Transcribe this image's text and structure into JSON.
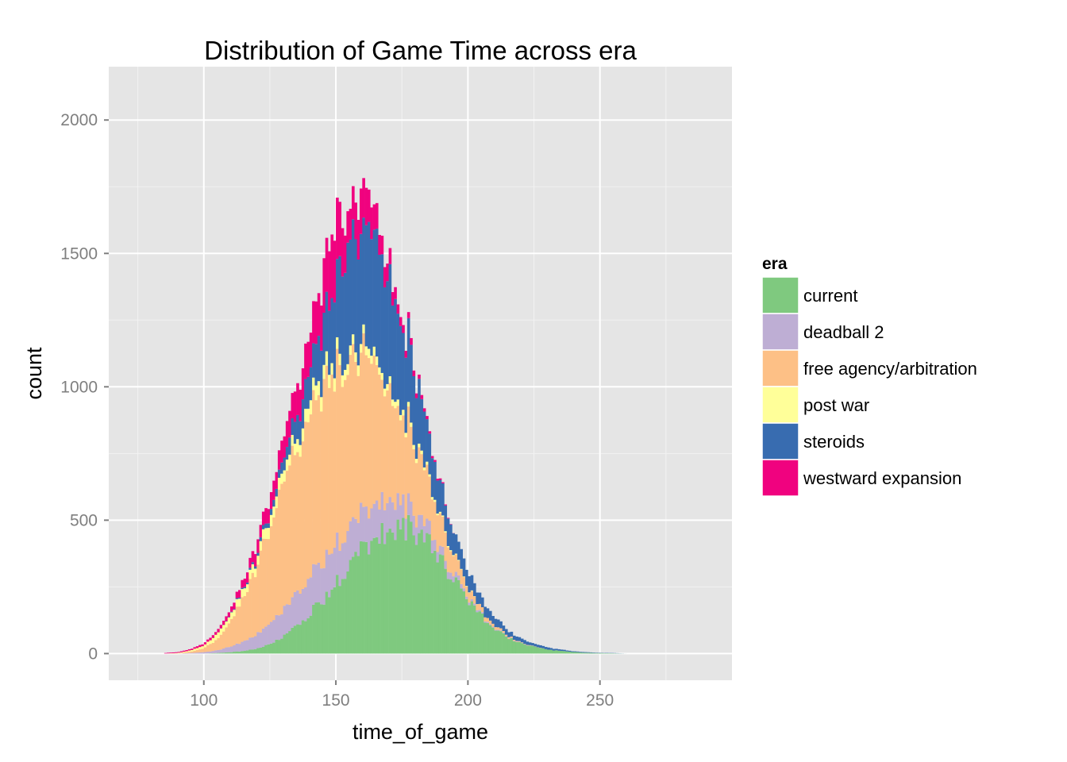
{
  "chart_data": {
    "type": "bar",
    "subtype": "stacked-histogram",
    "title": "Distribution of Game Time across era",
    "xlabel": "time_of_game",
    "ylabel": "count",
    "xlim": [
      64,
      300
    ],
    "ylim": [
      -100,
      2200
    ],
    "x_ticks": [
      100,
      150,
      200,
      250
    ],
    "y_ticks": [
      0,
      500,
      1000,
      1500,
      2000
    ],
    "x_tick_labels": [
      "100",
      "150",
      "200",
      "250"
    ],
    "y_tick_labels": [
      "0",
      "500",
      "1000",
      "1500",
      "2000"
    ],
    "grid": true,
    "legend": {
      "title": "era",
      "position": "right"
    },
    "bin_width": 1,
    "x": [
      85,
      90,
      95,
      100,
      105,
      110,
      115,
      120,
      125,
      130,
      135,
      140,
      145,
      150,
      155,
      160,
      165,
      170,
      175,
      180,
      185,
      190,
      195,
      200,
      205,
      210,
      215,
      220,
      225,
      230,
      235,
      240,
      245,
      250,
      255,
      260,
      265
    ],
    "series": [
      {
        "name": "current",
        "color": "#7FC97F",
        "values": [
          0,
          0,
          0,
          0,
          2,
          5,
          10,
          18,
          35,
          60,
          100,
          150,
          200,
          260,
          330,
          390,
          440,
          470,
          480,
          460,
          410,
          340,
          270,
          200,
          140,
          100,
          60,
          40,
          25,
          15,
          10,
          6,
          3,
          2,
          1,
          0,
          0
        ]
      },
      {
        "name": "deadball 2",
        "color": "#BEAED4",
        "values": [
          0,
          0,
          2,
          5,
          10,
          20,
          35,
          55,
          80,
          100,
          120,
          140,
          150,
          150,
          140,
          135,
          130,
          115,
          90,
          70,
          50,
          30,
          20,
          10,
          5,
          3,
          2,
          1,
          0,
          0,
          0,
          0,
          0,
          0,
          0,
          0,
          0
        ]
      },
      {
        "name": "free agency/arbitration",
        "color": "#FDC086",
        "values": [
          0,
          0,
          5,
          15,
          40,
          90,
          160,
          250,
          360,
          460,
          550,
          600,
          640,
          650,
          640,
          600,
          510,
          420,
          340,
          260,
          180,
          110,
          65,
          35,
          20,
          10,
          5,
          2,
          1,
          0,
          0,
          0,
          0,
          0,
          0,
          0,
          0
        ]
      },
      {
        "name": "post war",
        "color": "#FFFF99",
        "values": [
          0,
          2,
          5,
          10,
          20,
          25,
          30,
          35,
          40,
          40,
          45,
          50,
          50,
          45,
          40,
          35,
          30,
          25,
          20,
          15,
          10,
          5,
          3,
          2,
          0,
          0,
          0,
          0,
          0,
          0,
          0,
          0,
          0,
          0,
          0,
          0,
          0
        ]
      },
      {
        "name": "steroids",
        "color": "#386CB0",
        "values": [
          0,
          0,
          0,
          0,
          0,
          2,
          5,
          10,
          20,
          40,
          80,
          120,
          180,
          300,
          430,
          440,
          440,
          390,
          330,
          250,
          170,
          120,
          80,
          60,
          40,
          30,
          20,
          15,
          10,
          8,
          5,
          3,
          2,
          1,
          1,
          0,
          0
        ]
      },
      {
        "name": "westward expansion",
        "color": "#F0027F",
        "values": [
          2,
          3,
          5,
          8,
          12,
          20,
          30,
          45,
          60,
          80,
          110,
          140,
          180,
          230,
          120,
          160,
          90,
          60,
          30,
          20,
          10,
          5,
          0,
          0,
          0,
          0,
          0,
          0,
          0,
          0,
          0,
          0,
          0,
          0,
          0,
          0,
          0
        ]
      }
    ]
  }
}
